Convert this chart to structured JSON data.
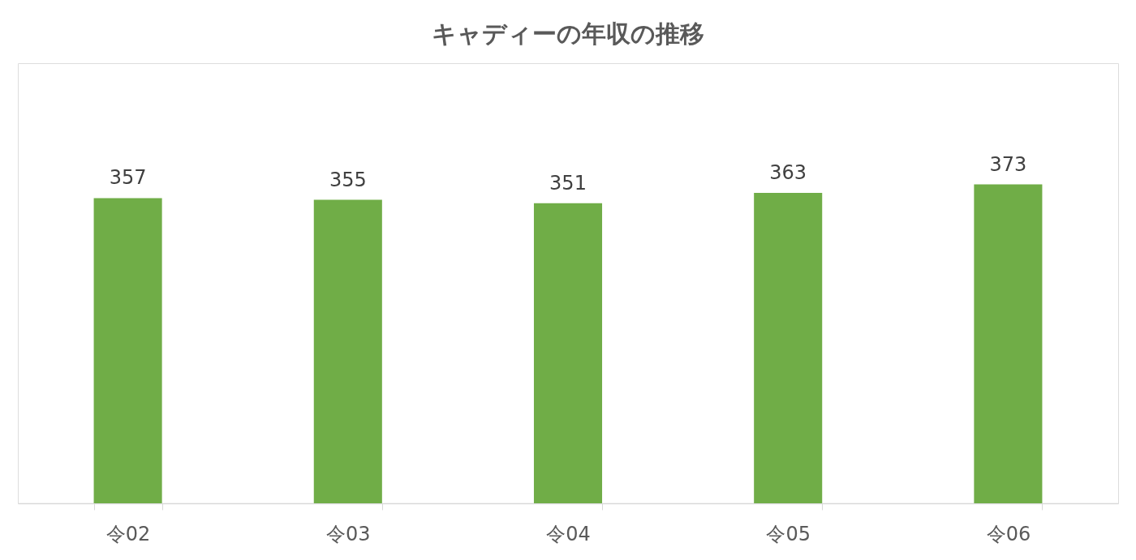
{
  "chart_data": {
    "type": "bar",
    "title": "キャディーの年収の推移",
    "categories": [
      "令02",
      "令03",
      "令04",
      "令05",
      "令06"
    ],
    "values": [
      357,
      355,
      351,
      363,
      373
    ],
    "color": "#70ad47",
    "data_labels": true
  }
}
